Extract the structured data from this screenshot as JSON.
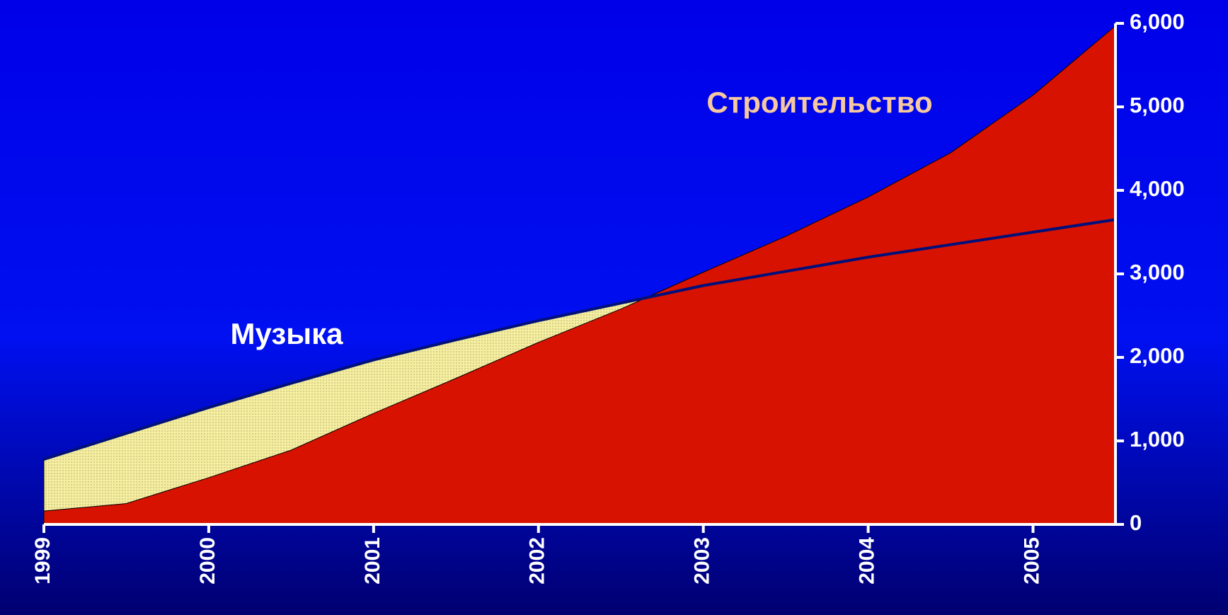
{
  "chart_data": {
    "type": "area",
    "x": [
      1999,
      1999.5,
      2000,
      2000.5,
      2001,
      2001.5,
      2002,
      2002.5,
      2003,
      2003.5,
      2004,
      2004.5,
      2005,
      2005.5
    ],
    "series": [
      {
        "name": "Музыка",
        "color": "#f5eea0",
        "line_color": "#00107a",
        "values": [
          780,
          1090,
          1400,
          1690,
          1970,
          2210,
          2440,
          2650,
          2860,
          3030,
          3200,
          3350,
          3500,
          3650
        ]
      },
      {
        "name": "Строительство",
        "color": "#d81200",
        "values": [
          160,
          250,
          560,
          890,
          1330,
          1750,
          2180,
          2580,
          3020,
          3450,
          3920,
          4450,
          5140,
          5970
        ]
      }
    ],
    "xlim": [
      1999,
      2005.5
    ],
    "xticks": [
      1999,
      2000,
      2001,
      2002,
      2003,
      2004,
      2005
    ],
    "ylim": [
      0,
      6000
    ],
    "yticks": [
      0,
      {
        "value": 1000,
        "label": "1,000"
      },
      {
        "value": 2000,
        "label": "2,000"
      },
      {
        "value": 3000,
        "label": "3,000"
      },
      {
        "value": 4000,
        "label": "4,000"
      },
      {
        "value": 5000,
        "label": "5,000"
      },
      {
        "value": 6000,
        "label": "6,000"
      }
    ]
  }
}
